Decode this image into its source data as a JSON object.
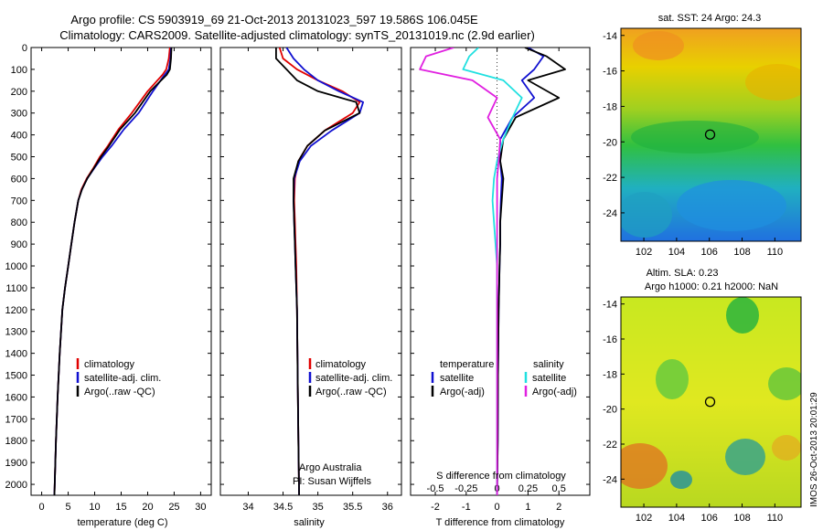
{
  "header": {
    "title1": "Argo profile: CS 5903919_69 21-Oct-2013 20131023_597 19.586S 106.045E",
    "title2": "Climatology: CARS2009. Satellite-adjusted climatology: synTS_20131019.nc (2.9d earlier)"
  },
  "credit": {
    "line1": "Argo Australia",
    "line2": "PI: Susan Wijffels"
  },
  "watermark": "IMOS 26-Oct-2013 20:01:29",
  "colors": {
    "climatology": "#e00000",
    "satellite": "#1010d0",
    "argo": "#000000",
    "sal_satellite": "#20e0e0",
    "sal_argo": "#e020e0"
  },
  "chart_data": [
    {
      "type": "line",
      "xlabel": "temperature (deg C)",
      "ylabel": "",
      "xlim": [
        -2,
        32
      ],
      "ylim": [
        2050,
        0
      ],
      "xticks": [
        0,
        5,
        10,
        15,
        20,
        25,
        30
      ],
      "yticks": [
        0,
        100,
        200,
        300,
        400,
        500,
        600,
        700,
        800,
        900,
        1000,
        1100,
        1200,
        1300,
        1400,
        1500,
        1600,
        1700,
        1800,
        1900,
        2000
      ],
      "legend": {
        "placement": "lower-center",
        "entries": [
          "climatology",
          "satellite-adj. clim.",
          "Argo(..raw -QC)"
        ]
      },
      "series": [
        {
          "name": "climatology",
          "color": "#e00000",
          "x": [
            24.2,
            24.0,
            23.5,
            22.8,
            20.0,
            17.0,
            14.5,
            12.5,
            11.0,
            9.8,
            8.5,
            7.5,
            6.9,
            6.2,
            5.6,
            5.0,
            4.4,
            3.9,
            3.4,
            3.0,
            2.7,
            2.4
          ],
          "y": [
            0,
            50,
            100,
            125,
            200,
            300,
            375,
            450,
            500,
            550,
            600,
            650,
            700,
            800,
            900,
            1000,
            1100,
            1200,
            1400,
            1600,
            1800,
            2050
          ]
        },
        {
          "name": "satellite-adj. clim.",
          "color": "#1010d0",
          "x": [
            24.4,
            24.3,
            24.0,
            23.2,
            21.0,
            18.3,
            15.5,
            13.2,
            11.5,
            10.0,
            8.6,
            7.6,
            6.9,
            6.2,
            5.6,
            5.0,
            4.4,
            3.9,
            3.4,
            3.0,
            2.7,
            2.4
          ],
          "y": [
            0,
            50,
            100,
            125,
            200,
            300,
            375,
            450,
            500,
            550,
            600,
            650,
            700,
            800,
            900,
            1000,
            1100,
            1200,
            1400,
            1600,
            1800,
            2050
          ]
        },
        {
          "name": "Argo(..raw -QC)",
          "color": "#000000",
          "x": [
            24.5,
            24.4,
            24.2,
            23.6,
            20.5,
            17.6,
            14.8,
            12.7,
            11.2,
            9.9,
            8.6,
            7.6,
            6.9,
            6.2,
            5.6,
            5.0,
            4.4,
            3.9,
            3.4,
            3.0,
            2.7,
            2.4
          ],
          "y": [
            0,
            50,
            100,
            125,
            200,
            300,
            375,
            450,
            500,
            550,
            600,
            650,
            700,
            800,
            900,
            1000,
            1100,
            1200,
            1400,
            1600,
            1800,
            2050
          ]
        }
      ]
    },
    {
      "type": "line",
      "xlabel": "salinity",
      "xlim": [
        33.6,
        36.2
      ],
      "ylim": [
        2050,
        0
      ],
      "xticks": [
        34,
        34.5,
        35,
        35.5,
        36
      ],
      "legend": {
        "placement": "lower-right",
        "entries": [
          "climatology",
          "satellite-adj. clim.",
          "Argo(..raw -QC)"
        ]
      },
      "series": [
        {
          "name": "climatology",
          "color": "#e00000",
          "x": [
            34.45,
            34.5,
            34.7,
            35.0,
            35.35,
            35.6,
            35.5,
            35.1,
            34.85,
            34.72,
            34.67,
            34.66,
            34.67,
            34.68,
            34.69,
            34.7,
            34.71,
            34.72,
            34.73
          ],
          "y": [
            0,
            50,
            100,
            150,
            200,
            250,
            300,
            380,
            450,
            520,
            600,
            700,
            800,
            900,
            1000,
            1200,
            1500,
            1800,
            2050
          ]
        },
        {
          "name": "satellite-adj. clim.",
          "color": "#1010d0",
          "x": [
            34.55,
            34.65,
            34.8,
            35.0,
            35.3,
            35.65,
            35.6,
            35.2,
            34.9,
            34.74,
            34.66,
            34.65,
            34.66,
            34.67,
            34.68,
            34.7,
            34.71,
            34.72,
            34.73
          ],
          "y": [
            0,
            50,
            100,
            150,
            200,
            250,
            300,
            380,
            450,
            520,
            600,
            700,
            800,
            900,
            1000,
            1200,
            1500,
            1800,
            2050
          ]
        },
        {
          "name": "Argo(..raw -QC)",
          "color": "#000000",
          "x": [
            34.4,
            34.4,
            34.55,
            34.7,
            35.0,
            35.55,
            35.6,
            35.1,
            34.85,
            34.72,
            34.65,
            34.65,
            34.66,
            34.67,
            34.68,
            34.7,
            34.71,
            34.72,
            34.73
          ],
          "y": [
            0,
            50,
            100,
            150,
            200,
            250,
            300,
            380,
            450,
            520,
            600,
            700,
            800,
            900,
            1000,
            1200,
            1500,
            1800,
            2050
          ]
        }
      ]
    },
    {
      "type": "line",
      "xlabel": "T difference from climatology",
      "xlabel_top": "S difference from climatology",
      "xlim": [
        -2.8,
        3.0
      ],
      "ylim": [
        2050,
        0
      ],
      "xticks": [
        -2,
        -1,
        0,
        1,
        2
      ],
      "s_ticks": [
        "-0.5",
        "-0.25",
        "0",
        "0.25",
        "0.5"
      ],
      "legend": {
        "placement": "lower-center",
        "headers": [
          "temperature",
          "salinity"
        ],
        "entries": [
          "satellite",
          "Argo(-adj)",
          "satellite",
          "Argo(-adj)"
        ]
      },
      "series": [
        {
          "name": "satellite",
          "group": "temperature",
          "color": "#1010d0",
          "x": [
            1.0,
            1.5,
            1.2,
            0.8,
            1.2,
            0.5,
            0.1,
            0.1,
            0.15,
            0.12,
            0.1,
            0.1,
            0.08,
            0.05,
            0.03,
            0.02,
            0.0
          ],
          "y": [
            0,
            40,
            100,
            150,
            230,
            320,
            420,
            520,
            600,
            700,
            800,
            900,
            1000,
            1200,
            1500,
            1800,
            2050
          ]
        },
        {
          "name": "Argo(-adj)",
          "group": "temperature",
          "color": "#000000",
          "x": [
            0.9,
            1.6,
            2.2,
            1.0,
            2.0,
            0.6,
            0.2,
            0.1,
            0.2,
            0.15,
            0.1,
            0.1,
            0.08,
            0.05,
            0.03,
            0.02,
            0.0
          ],
          "y": [
            0,
            40,
            100,
            150,
            230,
            320,
            420,
            520,
            600,
            700,
            800,
            900,
            1000,
            1200,
            1500,
            1800,
            2050
          ]
        },
        {
          "name": "satellite",
          "group": "salinity",
          "color": "#20e0e0",
          "x": [
            -0.6,
            -0.9,
            -1.1,
            0.2,
            0.8,
            0.5,
            0.2,
            0.0,
            -0.1,
            -0.15,
            -0.1,
            -0.05,
            0.0,
            0.0,
            0.0,
            0.0,
            0.0
          ],
          "y": [
            0,
            40,
            100,
            150,
            230,
            320,
            420,
            520,
            600,
            700,
            800,
            900,
            1000,
            1200,
            1500,
            1800,
            2050
          ]
        },
        {
          "name": "Argo(-adj)",
          "group": "salinity",
          "color": "#e020e0",
          "x": [
            -1.4,
            -2.3,
            -2.5,
            -0.8,
            0.0,
            -0.3,
            0.1,
            0.05,
            0.0,
            0.0,
            0.0,
            0.0,
            0.0,
            0.0,
            0.0,
            0.0,
            0.0
          ],
          "y": [
            0,
            40,
            100,
            150,
            230,
            320,
            420,
            520,
            600,
            700,
            800,
            900,
            1000,
            1200,
            1500,
            1800,
            2050
          ]
        }
      ]
    },
    {
      "type": "heatmap",
      "title": "sat. SST: 24  Argo: 24.3",
      "xlim": [
        100.6,
        111.6
      ],
      "ylim": [
        -25.6,
        -13.6
      ],
      "xticks": [
        102,
        104,
        106,
        108,
        110
      ],
      "yticks": [
        -14,
        -16,
        -18,
        -20,
        -22,
        -24
      ],
      "marker": {
        "x": 106.045,
        "y": -19.586
      }
    },
    {
      "type": "heatmap",
      "title": "Altim. SLA: 0.23",
      "subtitle": "Argo h1000: 0.21 h2000: NaN",
      "xlim": [
        100.6,
        111.6
      ],
      "ylim": [
        -25.6,
        -13.6
      ],
      "xticks": [
        102,
        104,
        106,
        108,
        110
      ],
      "yticks": [
        -14,
        -16,
        -18,
        -20,
        -22,
        -24
      ],
      "marker": {
        "x": 106.045,
        "y": -19.586
      }
    }
  ]
}
